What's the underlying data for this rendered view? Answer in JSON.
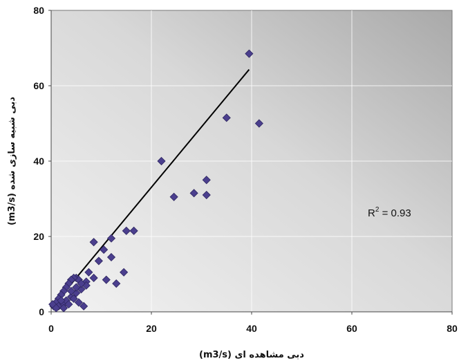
{
  "chart_data": {
    "type": "scatter",
    "xlabel": "دبی مشاهده ای (m3/s)",
    "ylabel": "دبی شبیه سازی شده (m3/s)",
    "xlim": [
      0,
      80
    ],
    "ylim": [
      0,
      80
    ],
    "x_ticks": [
      0,
      20,
      40,
      60,
      80
    ],
    "y_ticks": [
      0,
      20,
      40,
      60,
      80
    ],
    "x_tick_labels": [
      "0",
      "20",
      "40",
      "60",
      "80"
    ],
    "y_tick_labels": [
      "0",
      "20",
      "40",
      "60",
      "80"
    ],
    "grid": true,
    "marker_color": "#4b3f8e",
    "trendline_color": "#000000",
    "r2_base": "R",
    "r2_exp": "2",
    "r2_value": " = 0.93",
    "trendline": {
      "x": [
        0,
        39.5
      ],
      "y": [
        1,
        64.3
      ]
    },
    "points": [
      [
        39.5,
        68.5
      ],
      [
        35,
        51.5
      ],
      [
        41.5,
        50
      ],
      [
        22,
        40
      ],
      [
        31,
        35
      ],
      [
        31,
        31
      ],
      [
        28.5,
        31.5
      ],
      [
        24.5,
        30.5
      ],
      [
        16.5,
        21.5
      ],
      [
        15,
        21.5
      ],
      [
        12,
        19.5
      ],
      [
        8.5,
        18.5
      ],
      [
        14.5,
        10.5
      ],
      [
        12,
        14.5
      ],
      [
        10.5,
        16.5
      ],
      [
        9.5,
        13.5
      ],
      [
        13,
        7.5
      ],
      [
        11,
        8.5
      ],
      [
        8.5,
        9
      ],
      [
        7,
        8
      ],
      [
        7.5,
        10.5
      ],
      [
        5,
        9
      ],
      [
        5.5,
        8.5
      ],
      [
        4.5,
        9
      ],
      [
        4,
        8.5
      ],
      [
        3.5,
        7.5
      ],
      [
        3,
        6.5
      ],
      [
        2.5,
        5.5
      ],
      [
        2,
        4.5
      ],
      [
        1.5,
        3.5
      ],
      [
        1,
        2.5
      ],
      [
        0.5,
        1.5
      ],
      [
        0.3,
        2
      ],
      [
        1.5,
        1.5
      ],
      [
        2.5,
        2
      ],
      [
        3,
        3
      ],
      [
        4,
        4
      ],
      [
        5,
        5
      ],
      [
        6,
        6
      ],
      [
        7,
        7
      ],
      [
        4.5,
        3.5
      ],
      [
        3.5,
        2
      ],
      [
        2.5,
        1
      ],
      [
        1,
        1
      ],
      [
        6.5,
        1.5
      ],
      [
        5,
        6.5
      ],
      [
        6,
        7.5
      ],
      [
        5.5,
        2.5
      ],
      [
        4,
        5.5
      ],
      [
        2,
        3
      ]
    ]
  }
}
